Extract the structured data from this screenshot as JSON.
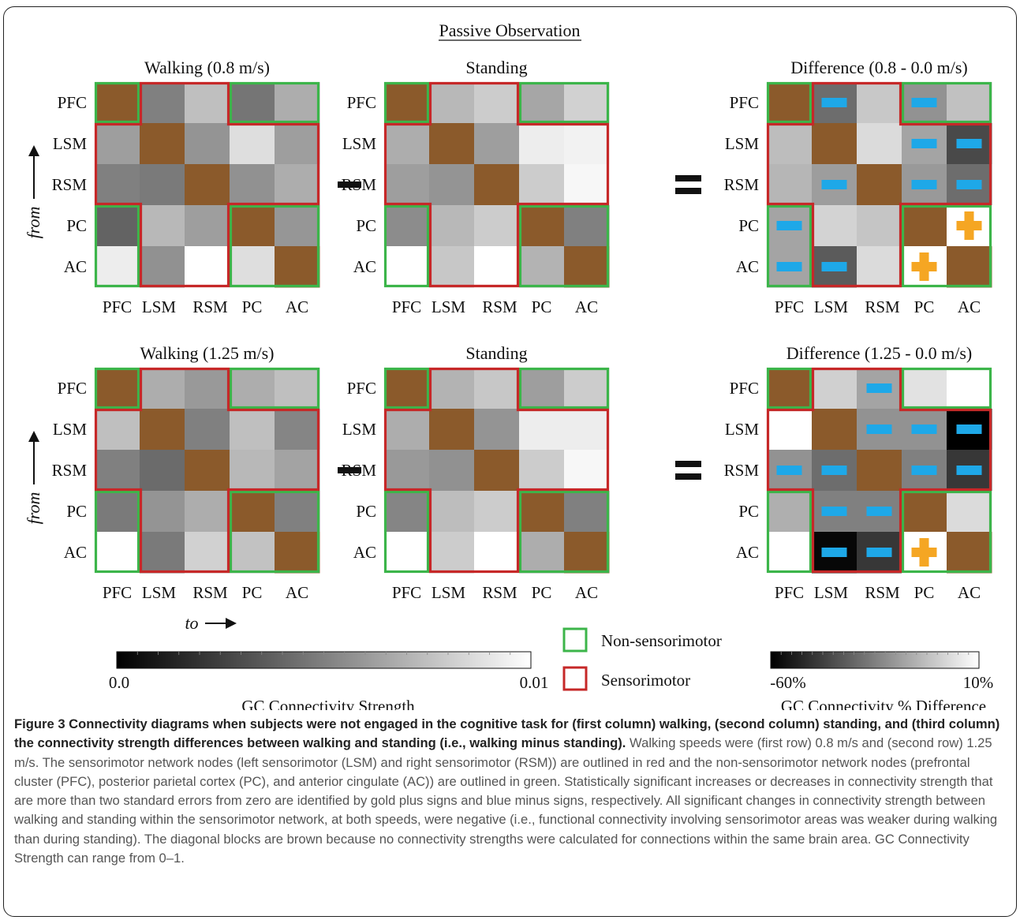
{
  "figure": {
    "title": "Passive Observation",
    "caption_bold": "Figure 3 Connectivity diagrams when subjects were not engaged in the cognitive task for (first column) walking, (second column) standing, and (third column) the connectivity strength differences between walking and standing (i.e., walking minus standing).",
    "caption_text": "Walking speeds were (first row) 0.8 m/s and (second row) 1.25 m/s. The sensorimotor network nodes (left sensorimotor (LSM) and right sensorimotor (RSM)) are outlined in red and the non-sensorimotor network nodes (prefrontal cluster (PFC), posterior parietal cortex (PC), and anterior cingulate (AC)) are outlined in green. Statistically significant increases or decreases in connectivity strength that are more than two standard errors from zero are identified by gold plus signs and blue minus signs, respectively. All significant changes in connectivity strength between walking and standing within the sensorimotor network, at both speeds, were negative (i.e., functional connectivity involving sensorimotor areas was weaker during walking than during standing). The diagonal blocks are brown because no connectivity strengths were calculated for connections within the same brain area. GC Connectivity Strength can range from 0–1."
  },
  "chart_data": {
    "type": "heatmap",
    "nodes": [
      "PFC",
      "LSM",
      "RSM",
      "PC",
      "AC"
    ],
    "col_tick_labels": [
      "PFC",
      "LSM",
      "RSM",
      "PC",
      "AC"
    ],
    "axis_labels": {
      "from": "from",
      "to": "to"
    },
    "operators": {
      "minus": "−",
      "equals": "="
    },
    "colors": {
      "diagonal": "#8B5A2B",
      "sensorimotor_outline": "#C62828",
      "non_sensorimotor_outline": "#3CB54A",
      "minus_mark": "#1EA8E8",
      "plus_mark": "#F5A623"
    },
    "panels": [
      {
        "title": "Walking (0.8 m/s)",
        "row": 0,
        "col": 0,
        "scale": "strength",
        "values": [
          [
            null,
            0.005,
            0.0075,
            0.0046,
            0.0068
          ],
          [
            0.0062,
            null,
            0.0058,
            0.0087,
            0.0062
          ],
          [
            0.005,
            0.0048,
            null,
            0.0057,
            0.0068
          ],
          [
            0.0039,
            0.0072,
            0.0062,
            null,
            0.0059
          ],
          [
            0.0093,
            0.0057,
            0.01,
            0.0087,
            null
          ]
        ]
      },
      {
        "title": "Standing",
        "row": 0,
        "col": 1,
        "scale": "strength",
        "values": [
          [
            null,
            0.0072,
            0.008,
            0.0065,
            0.0082
          ],
          [
            0.0068,
            null,
            0.0062,
            0.0093,
            0.0095
          ],
          [
            0.0062,
            0.0058,
            null,
            0.008,
            0.0097
          ],
          [
            0.0055,
            0.0072,
            0.008,
            null,
            0.005
          ],
          [
            0.01,
            0.0078,
            0.01,
            0.007,
            null
          ]
        ]
      },
      {
        "title": "Difference (0.8 - 0.0 m/s)",
        "row": 0,
        "col": 2,
        "scale": "difference",
        "values": [
          [
            null,
            -30,
            -5,
            -20,
            -7
          ],
          [
            -8,
            null,
            0,
            -15,
            -40
          ],
          [
            -10,
            -17,
            null,
            -18,
            -30
          ],
          [
            -15,
            -2,
            -6,
            null,
            10
          ],
          [
            -15,
            -35,
            0,
            10,
            null
          ]
        ],
        "marks": [
          [
            null,
            "minus",
            null,
            "minus",
            null
          ],
          [
            null,
            null,
            null,
            "minus",
            "minus"
          ],
          [
            null,
            "minus",
            null,
            "minus",
            "minus"
          ],
          [
            "minus",
            null,
            null,
            null,
            "plus"
          ],
          [
            "minus",
            "minus",
            null,
            "plus",
            null
          ]
        ]
      },
      {
        "title": "Walking (1.25 m/s)",
        "row": 1,
        "col": 0,
        "scale": "strength",
        "values": [
          [
            null,
            0.0068,
            0.006,
            0.0068,
            0.0075
          ],
          [
            0.0075,
            null,
            0.005,
            0.0075,
            0.0052
          ],
          [
            0.005,
            0.0042,
            null,
            0.0072,
            0.0064
          ],
          [
            0.0048,
            0.0058,
            0.0068,
            null,
            0.005
          ],
          [
            0.01,
            0.0048,
            0.0082,
            0.0076,
            null
          ]
        ]
      },
      {
        "title": "Standing",
        "row": 1,
        "col": 1,
        "scale": "strength",
        "values": [
          [
            null,
            0.007,
            0.0078,
            0.0062,
            0.008
          ],
          [
            0.0068,
            null,
            0.0058,
            0.0093,
            0.0093
          ],
          [
            0.006,
            0.0057,
            null,
            0.008,
            0.0097
          ],
          [
            0.0052,
            0.0074,
            0.008,
            null,
            0.005
          ],
          [
            0.01,
            0.008,
            0.01,
            0.0068,
            null
          ]
        ]
      },
      {
        "title": "Difference (1.25 - 0.0 m/s)",
        "row": 1,
        "col": 2,
        "scale": "difference",
        "values": [
          [
            null,
            -3,
            -15,
            2,
            10
          ],
          [
            10,
            null,
            -20,
            -20,
            -60
          ],
          [
            -20,
            -30,
            null,
            -25,
            -45
          ],
          [
            -12,
            -25,
            -25,
            null,
            0
          ],
          [
            10,
            -58,
            -45,
            10,
            null
          ]
        ],
        "marks": [
          [
            null,
            null,
            "minus",
            null,
            null
          ],
          [
            null,
            null,
            "minus",
            "minus",
            "minus"
          ],
          [
            "minus",
            "minus",
            null,
            "minus",
            "minus"
          ],
          [
            null,
            "minus",
            "minus",
            null,
            null
          ],
          [
            null,
            "minus",
            "minus",
            "plus",
            null
          ]
        ]
      }
    ],
    "legend": {
      "green_label": "Non-sensorimotor",
      "red_label": "Sensorimotor",
      "position": "bottom-center"
    },
    "colorbars": [
      {
        "label": "GC Connectivity Strength",
        "min_label": "0.0",
        "max_label": "0.01",
        "range": [
          0,
          0.01
        ]
      },
      {
        "label": "GC Connectivity % Difference",
        "min_label": "-60%",
        "max_label": "10%",
        "range": [
          -60,
          10
        ]
      }
    ]
  }
}
